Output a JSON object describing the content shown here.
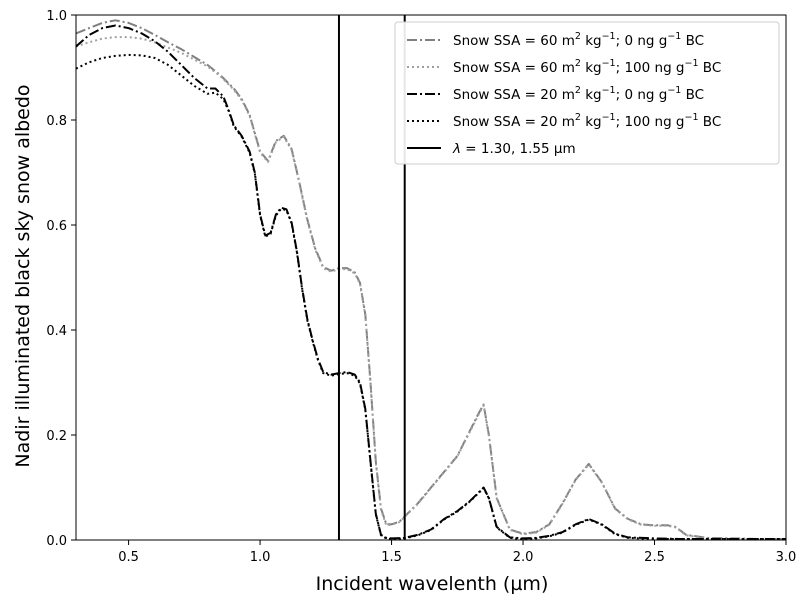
{
  "chart_data": {
    "type": "line",
    "xlabel": "Incident wavelenth (µm)",
    "ylabel": "Nadir illuminated black sky snow albedo",
    "xlim": [
      0.3,
      3.0
    ],
    "ylim": [
      0.0,
      1.0
    ],
    "x_ticks": [
      0.5,
      1.0,
      1.5,
      2.0,
      2.5,
      3.0
    ],
    "x_tick_labels": [
      "0.5",
      "1.0",
      "1.5",
      "2.0",
      "2.5",
      "3.0"
    ],
    "y_ticks": [
      0.0,
      0.2,
      0.4,
      0.6,
      0.8,
      1.0
    ],
    "y_tick_labels": [
      "0.0",
      "0.2",
      "0.4",
      "0.6",
      "0.8",
      "1.0"
    ],
    "grid": false,
    "legend_position": "top-right",
    "series": [
      {
        "name_parts": [
          "Snow SSA = 60 m",
          "2",
          " kg",
          "−1",
          "; 0 ng g",
          "−1",
          " BC"
        ],
        "color": "#808080",
        "dash": "dashdot",
        "x": [
          0.3,
          0.35,
          0.4,
          0.45,
          0.5,
          0.55,
          0.6,
          0.65,
          0.7,
          0.75,
          0.8,
          0.85,
          0.88,
          0.9,
          0.93,
          0.96,
          1.0,
          1.03,
          1.06,
          1.09,
          1.12,
          1.15,
          1.18,
          1.21,
          1.24,
          1.27,
          1.3,
          1.33,
          1.36,
          1.38,
          1.4,
          1.42,
          1.44,
          1.46,
          1.48,
          1.5,
          1.53,
          1.56,
          1.6,
          1.65,
          1.7,
          1.75,
          1.8,
          1.83,
          1.85,
          1.87,
          1.9,
          1.95,
          2.0,
          2.05,
          2.1,
          2.15,
          2.2,
          2.25,
          2.3,
          2.35,
          2.4,
          2.45,
          2.5,
          2.55,
          2.58,
          2.62,
          2.7,
          2.8,
          2.9,
          3.0
        ],
        "values": [
          0.965,
          0.975,
          0.985,
          0.99,
          0.985,
          0.975,
          0.962,
          0.948,
          0.935,
          0.92,
          0.905,
          0.885,
          0.87,
          0.86,
          0.84,
          0.81,
          0.74,
          0.722,
          0.76,
          0.77,
          0.745,
          0.68,
          0.61,
          0.555,
          0.52,
          0.513,
          0.518,
          0.518,
          0.51,
          0.49,
          0.43,
          0.3,
          0.15,
          0.06,
          0.03,
          0.03,
          0.035,
          0.05,
          0.07,
          0.1,
          0.13,
          0.16,
          0.21,
          0.24,
          0.258,
          0.2,
          0.08,
          0.02,
          0.012,
          0.015,
          0.03,
          0.07,
          0.115,
          0.145,
          0.11,
          0.06,
          0.04,
          0.03,
          0.028,
          0.028,
          0.025,
          0.01,
          0.004,
          0.003,
          0.002,
          0.002
        ]
      },
      {
        "name_parts": [
          "Snow SSA = 60 m",
          "2",
          " kg",
          "−1",
          "; 100 ng g",
          "−1",
          " BC"
        ],
        "color": "#a0a0a0",
        "dash": "dotted",
        "x": [
          0.3,
          0.35,
          0.4,
          0.45,
          0.5,
          0.55,
          0.6,
          0.65,
          0.7,
          0.75,
          0.8,
          0.85,
          0.88,
          0.9,
          0.93,
          0.96,
          1.0,
          1.03,
          1.06,
          1.09,
          1.12,
          1.15,
          1.18,
          1.21,
          1.24,
          1.27,
          1.3,
          1.33,
          1.36,
          1.38,
          1.4,
          1.42,
          1.44,
          1.46,
          1.48,
          1.5,
          1.53,
          1.56,
          1.6,
          1.65,
          1.7,
          1.75,
          1.8,
          1.83,
          1.85,
          1.87,
          1.9,
          1.95,
          2.0,
          2.05,
          2.1,
          2.15,
          2.2,
          2.25,
          2.3,
          2.35,
          2.4,
          2.45,
          2.5,
          2.55,
          2.58,
          2.62,
          2.7,
          2.8,
          2.9,
          3.0
        ],
        "values": [
          0.94,
          0.948,
          0.955,
          0.958,
          0.958,
          0.955,
          0.948,
          0.938,
          0.928,
          0.915,
          0.902,
          0.883,
          0.868,
          0.858,
          0.838,
          0.808,
          0.738,
          0.72,
          0.758,
          0.768,
          0.743,
          0.678,
          0.608,
          0.553,
          0.518,
          0.511,
          0.516,
          0.516,
          0.508,
          0.488,
          0.428,
          0.298,
          0.148,
          0.058,
          0.028,
          0.029,
          0.034,
          0.049,
          0.069,
          0.099,
          0.129,
          0.159,
          0.208,
          0.238,
          0.256,
          0.198,
          0.079,
          0.019,
          0.011,
          0.014,
          0.029,
          0.069,
          0.114,
          0.144,
          0.109,
          0.059,
          0.039,
          0.029,
          0.027,
          0.027,
          0.024,
          0.009,
          0.003,
          0.002,
          0.002,
          0.002
        ]
      },
      {
        "name_parts": [
          "Snow SSA = 20 m",
          "2",
          " kg",
          "−1",
          "; 0 ng g",
          "−1",
          " BC"
        ],
        "color": "#000000",
        "dash": "dashdot",
        "x": [
          0.3,
          0.35,
          0.4,
          0.45,
          0.5,
          0.55,
          0.6,
          0.65,
          0.7,
          0.75,
          0.8,
          0.83,
          0.86,
          0.88,
          0.9,
          0.93,
          0.96,
          0.98,
          1.0,
          1.02,
          1.04,
          1.06,
          1.08,
          1.1,
          1.12,
          1.14,
          1.16,
          1.18,
          1.2,
          1.22,
          1.24,
          1.27,
          1.3,
          1.33,
          1.36,
          1.38,
          1.4,
          1.42,
          1.44,
          1.46,
          1.48,
          1.5,
          1.55,
          1.6,
          1.65,
          1.7,
          1.75,
          1.8,
          1.83,
          1.85,
          1.87,
          1.9,
          1.95,
          2.0,
          2.05,
          2.1,
          2.15,
          2.2,
          2.25,
          2.3,
          2.35,
          2.4,
          2.5,
          2.6,
          2.7,
          2.8,
          2.9,
          3.0
        ],
        "values": [
          0.94,
          0.962,
          0.975,
          0.98,
          0.975,
          0.965,
          0.95,
          0.93,
          0.905,
          0.88,
          0.86,
          0.86,
          0.845,
          0.82,
          0.79,
          0.77,
          0.74,
          0.7,
          0.62,
          0.58,
          0.585,
          0.62,
          0.633,
          0.63,
          0.605,
          0.55,
          0.48,
          0.42,
          0.38,
          0.345,
          0.32,
          0.315,
          0.318,
          0.32,
          0.315,
          0.3,
          0.25,
          0.15,
          0.05,
          0.01,
          0.004,
          0.003,
          0.004,
          0.01,
          0.02,
          0.04,
          0.055,
          0.075,
          0.09,
          0.1,
          0.08,
          0.025,
          0.005,
          0.003,
          0.004,
          0.008,
          0.015,
          0.03,
          0.04,
          0.03,
          0.012,
          0.005,
          0.003,
          0.002,
          0.002,
          0.002,
          0.002,
          0.002
        ]
      },
      {
        "name_parts": [
          "Snow SSA = 20 m",
          "2",
          " kg",
          "−1",
          "; 100 ng g",
          "−1",
          " BC"
        ],
        "color": "#000000",
        "dash": "dotted",
        "x": [
          0.3,
          0.35,
          0.4,
          0.45,
          0.5,
          0.55,
          0.6,
          0.65,
          0.7,
          0.75,
          0.8,
          0.83,
          0.86,
          0.88,
          0.9,
          0.93,
          0.96,
          0.98,
          1.0,
          1.02,
          1.04,
          1.06,
          1.08,
          1.1,
          1.12,
          1.14,
          1.16,
          1.18,
          1.2,
          1.22,
          1.24,
          1.27,
          1.3,
          1.33,
          1.36,
          1.38,
          1.4,
          1.42,
          1.44,
          1.46,
          1.48,
          1.5,
          1.55,
          1.6,
          1.65,
          1.7,
          1.75,
          1.8,
          1.83,
          1.85,
          1.87,
          1.9,
          1.95,
          2.0,
          2.05,
          2.1,
          2.15,
          2.2,
          2.25,
          2.3,
          2.35,
          2.4,
          2.5,
          2.6,
          2.7,
          2.8,
          2.9,
          3.0
        ],
        "values": [
          0.898,
          0.91,
          0.918,
          0.922,
          0.924,
          0.923,
          0.918,
          0.905,
          0.885,
          0.865,
          0.85,
          0.852,
          0.84,
          0.818,
          0.788,
          0.768,
          0.738,
          0.698,
          0.618,
          0.578,
          0.583,
          0.618,
          0.631,
          0.628,
          0.603,
          0.548,
          0.478,
          0.418,
          0.378,
          0.343,
          0.318,
          0.313,
          0.316,
          0.318,
          0.313,
          0.298,
          0.248,
          0.148,
          0.049,
          0.009,
          0.003,
          0.002,
          0.003,
          0.009,
          0.019,
          0.039,
          0.054,
          0.074,
          0.089,
          0.099,
          0.079,
          0.024,
          0.004,
          0.002,
          0.003,
          0.007,
          0.014,
          0.029,
          0.039,
          0.029,
          0.011,
          0.004,
          0.002,
          0.002,
          0.002,
          0.002,
          0.002,
          0.002
        ]
      }
    ],
    "vertical_lines": {
      "name_prefix": "λ",
      "name_suffix": " = 1.30, 1.55 µm",
      "color": "#000000",
      "x": [
        1.3,
        1.55
      ]
    }
  }
}
